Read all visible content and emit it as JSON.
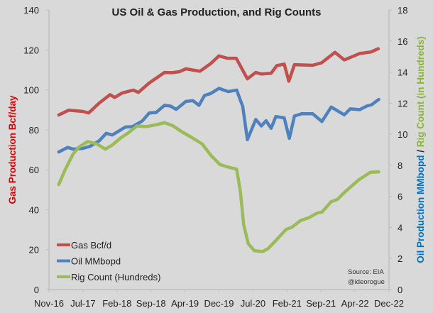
{
  "chart_data": {
    "type": "line",
    "title": "US Oil & Gas Production, and Rig Counts",
    "xlabel": "",
    "ylabel_left": "Gas Production Bcf/day",
    "ylabel_right_parts": [
      "Oil Production MMbopd",
      " / ",
      "Rig Count (in Hundreds)"
    ],
    "x_unit": "months since Nov-16",
    "x_range": [
      0,
      73
    ],
    "x_tick_labels": [
      "Nov-16",
      "Jul-17",
      "Feb-18",
      "Sep-18",
      "Apr-19",
      "Dec-19",
      "Jul-20",
      "Feb-21",
      "Sep-21",
      "Apr-22",
      "Dec-22"
    ],
    "ylim_left": [
      0,
      140
    ],
    "yticks_left": [
      0,
      20,
      40,
      60,
      80,
      100,
      120,
      140
    ],
    "ylim_right": [
      0,
      18
    ],
    "yticks_right": [
      0,
      2,
      4,
      6,
      8,
      10,
      12,
      14,
      16,
      18
    ],
    "grid": false,
    "legend_position": "bottom-left",
    "annotation": [
      "Source: EIA",
      "@ideorogue"
    ],
    "series": [
      {
        "name": "Gas Bcf/d",
        "axis": "left",
        "color": "#c0504d",
        "x": [
          2.1,
          4.2,
          7.3,
          8.5,
          10.8,
          13.1,
          14.1,
          15.7,
          18.1,
          19.2,
          21.5,
          24.8,
          26.5,
          28,
          29.4,
          32.4,
          34.7,
          36.5,
          38.3,
          40.2,
          42.6,
          44.4,
          45.6,
          47.7,
          48.9,
          50.5,
          51.5,
          52.7,
          56.6,
          58.5,
          61.4,
          63.4,
          66.7,
          69.2,
          70.7
        ],
        "y": [
          87.4,
          89.8,
          89.2,
          88.4,
          93.4,
          97.6,
          96.2,
          98.4,
          99.9,
          98.7,
          103.4,
          108.7,
          108.6,
          109.1,
          110.5,
          109.3,
          113.1,
          117,
          115.8,
          115.8,
          105.5,
          108.7,
          107.9,
          108.3,
          112.1,
          112.9,
          104.3,
          112.6,
          112.3,
          113.5,
          118.8,
          115,
          118.2,
          119,
          120.6
        ]
      },
      {
        "name": "Oil MMbopd",
        "axis": "right",
        "color": "#4f81bd",
        "x": [
          2.1,
          4,
          5.2,
          7.3,
          8.8,
          10.8,
          12.3,
          13.6,
          16.4,
          17.9,
          20,
          21.5,
          23,
          24.8,
          26.1,
          27.3,
          29.4,
          30.9,
          32.2,
          33.4,
          34.7,
          36.5,
          38.5,
          40.3,
          41.6,
          42.6,
          44.4,
          45.6,
          46.6,
          47.7,
          48.7,
          50.5,
          51.6,
          52.7,
          54.3,
          56.6,
          58.6,
          60.6,
          63.4,
          64.7,
          66.7,
          68.2,
          69.3,
          70.8
        ],
        "y": [
          8.86,
          9.15,
          9.04,
          9.09,
          9.22,
          9.58,
          10.06,
          9.95,
          10.46,
          10.49,
          10.84,
          11.36,
          11.4,
          11.86,
          11.81,
          11.6,
          12.11,
          12.16,
          11.86,
          12.5,
          12.62,
          12.95,
          12.74,
          12.84,
          11.78,
          9.65,
          10.95,
          10.53,
          10.87,
          10.38,
          11.14,
          11.05,
          9.73,
          11.17,
          11.32,
          11.32,
          10.82,
          11.75,
          11.25,
          11.63,
          11.58,
          11.81,
          11.9,
          12.24
        ]
      },
      {
        "name": "Rig Count (Hundreds)",
        "axis": "right",
        "color": "#9bbb59",
        "x": [
          2.1,
          3.4,
          5.2,
          6.5,
          8.3,
          10.3,
          12.1,
          13.6,
          15.4,
          16.9,
          18.9,
          20.9,
          23,
          24.8,
          26.5,
          28.6,
          30.6,
          32.9,
          34.7,
          36.7,
          38.3,
          40.3,
          41.1,
          41.8,
          42.8,
          44.1,
          45.9,
          47.1,
          50.9,
          52.2,
          54,
          55.8,
          57.6,
          58.6,
          60.6,
          61.9,
          63.7,
          66.5,
          69,
          70.8
        ],
        "y": [
          6.76,
          7.67,
          8.74,
          9.19,
          9.53,
          9.37,
          9.04,
          9.3,
          9.76,
          10.06,
          10.53,
          10.49,
          10.61,
          10.74,
          10.56,
          10.14,
          9.8,
          9.37,
          8.66,
          8.05,
          7.9,
          7.75,
          6.3,
          4.17,
          2.95,
          2.5,
          2.45,
          2.65,
          3.87,
          4.02,
          4.44,
          4.63,
          4.93,
          4.99,
          5.66,
          5.8,
          6.33,
          7.06,
          7.55,
          7.58
        ]
      }
    ]
  }
}
